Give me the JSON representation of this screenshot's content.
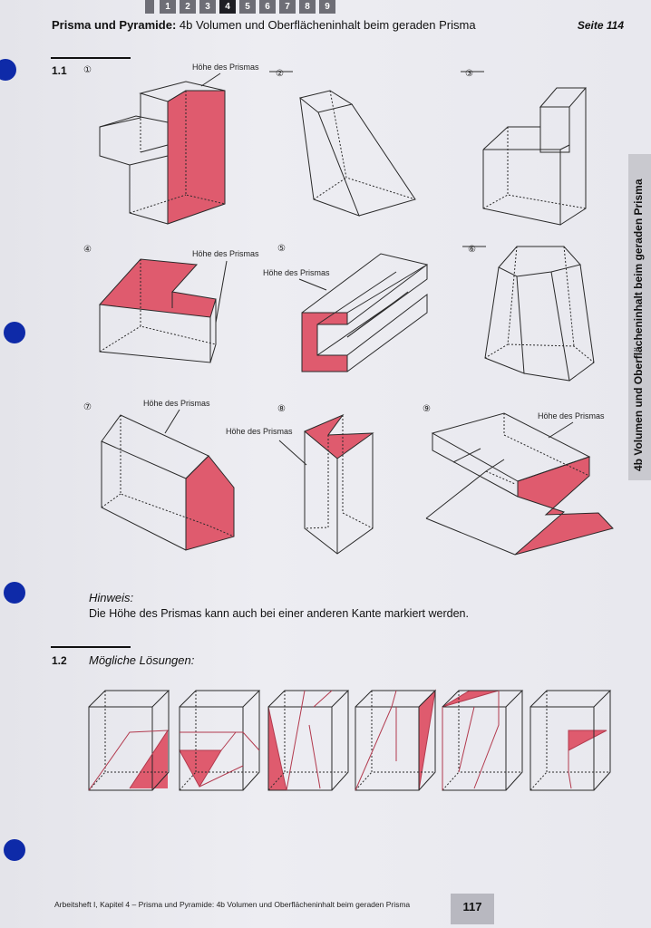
{
  "chapter_tabs": [
    {
      "label": "1",
      "active": false
    },
    {
      "label": "2",
      "active": false
    },
    {
      "label": "3",
      "active": false
    },
    {
      "label": "4",
      "active": true
    },
    {
      "label": "5",
      "active": false
    },
    {
      "label": "6",
      "active": false
    },
    {
      "label": "7",
      "active": false
    },
    {
      "label": "8",
      "active": false
    },
    {
      "label": "9",
      "active": false
    }
  ],
  "header": {
    "title_bold": "Prisma und Pyramide:",
    "title_rest": "4b Volumen und Oberflächeninhalt beim geraden Prisma",
    "page_ref": "Seite 114"
  },
  "side_label": "4b Volumen und Oberflächeninhalt beim geraden Prisma",
  "section_1_1": {
    "number": "1.1",
    "height_label": "Höhe des Prismas",
    "figures": [
      {
        "num": "①",
        "crossed": false
      },
      {
        "num": "②",
        "crossed": true
      },
      {
        "num": "③",
        "crossed": true
      },
      {
        "num": "④",
        "crossed": false
      },
      {
        "num": "⑤",
        "crossed": false
      },
      {
        "num": "⑥",
        "crossed": true
      },
      {
        "num": "⑦",
        "crossed": false
      },
      {
        "num": "⑧",
        "crossed": false
      },
      {
        "num": "⑨",
        "crossed": false
      }
    ],
    "hint_label": "Hinweis:",
    "hint_text": "Die Höhe des Prismas kann auch bei einer anderen Kante markiert werden."
  },
  "section_1_2": {
    "number": "1.2",
    "title": "Mögliche Lösungen:",
    "cube_count": 6
  },
  "footer": {
    "text": "Arbeitsheft I, Kapitel 4 – Prisma und Pyramide: 4b Volumen und Oberflächeninhalt beim geraden Prisma",
    "page_number": "117"
  },
  "colors": {
    "highlight": "#df5b6e",
    "line": "#2a2a2a",
    "punch_hole": "#0e2aa8"
  }
}
